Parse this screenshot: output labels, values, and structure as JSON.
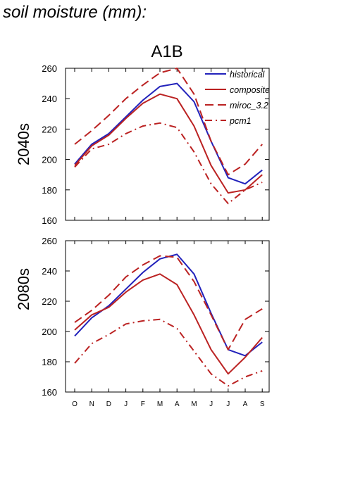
{
  "page": {
    "title": "soil moisture (mm):"
  },
  "chart_data": {
    "type": "line",
    "scenario_title": "A1B",
    "months": [
      "O",
      "N",
      "D",
      "J",
      "F",
      "M",
      "A",
      "M",
      "J",
      "J",
      "A",
      "S"
    ],
    "ylim": [
      160,
      260
    ],
    "yticks": [
      160,
      180,
      200,
      220,
      240,
      260
    ],
    "legend": {
      "placement": "top-right",
      "entries": [
        {
          "name": "historical",
          "color": "#2222bb",
          "dash": "solid"
        },
        {
          "name": "composite",
          "color": "#bb2222",
          "dash": "solid"
        },
        {
          "name": "miroc_3.2",
          "color": "#bb2222",
          "dash": "dash"
        },
        {
          "name": "pcm1",
          "color": "#bb2222",
          "dash": "dashdot"
        }
      ]
    },
    "panels": [
      {
        "label": "2040s",
        "series": [
          {
            "name": "historical",
            "values": [
              197,
              210,
              217,
              228,
              239,
              248,
              250,
              238,
              212,
              188,
              184,
              193
            ]
          },
          {
            "name": "composite",
            "values": [
              196,
              209,
              216,
              227,
              237,
              243,
              240,
              222,
              196,
              178,
              180,
              190
            ]
          },
          {
            "name": "miroc_3.2",
            "values": [
              210,
              219,
              229,
              240,
              249,
              257,
              260,
              243,
              212,
              190,
              197,
              210
            ]
          },
          {
            "name": "pcm1",
            "values": [
              195,
              207,
              210,
              217,
              222,
              224,
              221,
              205,
              184,
              171,
              180,
              185
            ]
          }
        ]
      },
      {
        "label": "2080s",
        "series": [
          {
            "name": "historical",
            "values": [
              197,
              209,
              217,
              228,
              239,
              248,
              251,
              238,
              212,
              188,
              184,
              193
            ]
          },
          {
            "name": "composite",
            "values": [
              201,
              211,
              216,
              226,
              234,
              238,
              231,
              211,
              188,
              172,
              183,
              196
            ]
          },
          {
            "name": "miroc_3.2",
            "values": [
              206,
              214,
              224,
              236,
              244,
              250,
              249,
              233,
              211,
              188,
              208,
              215
            ]
          },
          {
            "name": "pcm1",
            "values": [
              179,
              192,
              198,
              205,
              207,
              208,
              202,
              187,
              172,
              164,
              170,
              174
            ]
          }
        ]
      }
    ]
  }
}
